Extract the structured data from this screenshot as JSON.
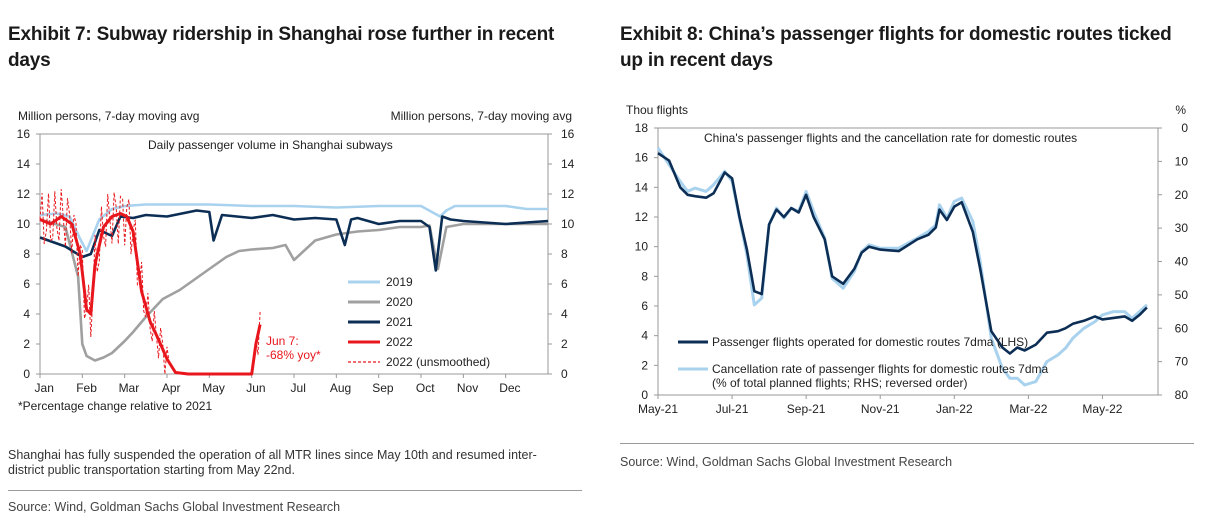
{
  "exhibit7": {
    "title": "Exhibit 7: Subway ridership in Shanghai rose further in recent days",
    "note": "Shanghai has fully suspended the operation of all MTR lines since May 10th and resumed inter-district public transportation starting from May 22nd.",
    "source": "Source: Wind, Goldman Sachs Global Investment Research",
    "footnote": "*Percentage change relative to 2021",
    "annotation": [
      "Jun 7:",
      "-68% yoy*"
    ],
    "colors": {
      "2019": "#a9d2ee",
      "2020": "#a0a0a0",
      "2021": "#0c2e55",
      "2022": "#e8171d"
    }
  },
  "exhibit8": {
    "title": "Exhibit 8: China’s passenger flights for domestic routes ticked up in recent days",
    "source": "Source: Wind, Goldman Sachs Global Investment Research",
    "colors": {
      "flights": "#0c2e55",
      "cancel": "#a9d2ee"
    }
  },
  "chart_data": [
    {
      "type": "line",
      "title": "Daily passenger volume in Shanghai subways",
      "ylabel_left": "Million persons, 7-day moving avg",
      "ylabel_right": "Million persons, 7-day moving avg",
      "ylim": [
        0,
        16
      ],
      "yticks": [
        "0",
        "2",
        "4",
        "6",
        "8",
        "10",
        "12",
        "14",
        "16"
      ],
      "categories": [
        "Jan",
        "Feb",
        "Mar",
        "Apr",
        "May",
        "Jun",
        "Jul",
        "Aug",
        "Sep",
        "Oct",
        "Nov",
        "Dec"
      ],
      "x_unit": "month (0 = start of Jan, 12 = end of Dec)",
      "legend": [
        "2019",
        "2020",
        "2021",
        "2022",
        "2022 (unsmoothed)"
      ],
      "series": [
        {
          "name": "2019",
          "x": [
            0,
            0.4,
            0.7,
            0.95,
            1.1,
            1.4,
            1.7,
            2.0,
            2.5,
            3.0,
            4.0,
            5.0,
            6.0,
            7.0,
            8.0,
            9.0,
            9.45,
            9.6,
            9.8,
            10.0,
            11.0,
            11.5,
            12.0
          ],
          "values": [
            10.6,
            10.7,
            10.5,
            9.0,
            8.2,
            10.3,
            11.0,
            11.2,
            11.3,
            11.3,
            11.3,
            11.2,
            11.2,
            11.1,
            11.2,
            11.2,
            10.5,
            10.9,
            11.2,
            11.2,
            11.2,
            11.0,
            11.0
          ]
        },
        {
          "name": "2020",
          "x": [
            0,
            0.6,
            0.9,
            1.0,
            1.1,
            1.3,
            1.5,
            1.7,
            2.0,
            2.2,
            2.5,
            2.9,
            3.3,
            3.6,
            4.0,
            4.4,
            4.7,
            5.0,
            5.5,
            5.8,
            6.0,
            6.5,
            7.0,
            7.5,
            8.0,
            8.5,
            9.0,
            9.2,
            9.4,
            9.6,
            10.0,
            11.0,
            12.0
          ],
          "values": [
            10.3,
            9.8,
            6.5,
            2.0,
            1.2,
            0.9,
            1.1,
            1.4,
            2.2,
            2.8,
            3.8,
            5.0,
            5.6,
            6.2,
            7.0,
            7.8,
            8.2,
            8.3,
            8.4,
            8.6,
            7.6,
            8.9,
            9.3,
            9.5,
            9.6,
            9.8,
            9.8,
            9.9,
            7.0,
            9.8,
            10.0,
            10.0,
            10.0
          ]
        },
        {
          "name": "2021",
          "x": [
            0,
            0.3,
            0.6,
            1.0,
            1.2,
            1.4,
            1.7,
            1.9,
            2.2,
            2.5,
            3.0,
            3.7,
            4.0,
            4.1,
            4.3,
            5.0,
            5.5,
            6.0,
            6.5,
            7.0,
            7.2,
            7.35,
            7.5,
            8.0,
            8.5,
            9.0,
            9.2,
            9.35,
            9.5,
            9.7,
            10.0,
            11.0,
            12.0
          ],
          "values": [
            9.1,
            8.8,
            8.5,
            7.8,
            8.0,
            9.6,
            9.2,
            10.5,
            10.4,
            10.6,
            10.5,
            10.9,
            10.8,
            8.9,
            10.6,
            10.4,
            10.6,
            10.3,
            10.4,
            10.3,
            8.6,
            10.3,
            10.4,
            10.0,
            10.2,
            10.2,
            9.8,
            6.9,
            10.5,
            10.3,
            10.2,
            10.0,
            10.2
          ]
        },
        {
          "name": "2022",
          "x": [
            0,
            0.25,
            0.5,
            0.75,
            0.95,
            1.1,
            1.2,
            1.3,
            1.5,
            1.7,
            1.9,
            2.05,
            2.2,
            2.4,
            2.6,
            2.8,
            3.0,
            3.2,
            3.5,
            4.0,
            5.0,
            5.1,
            5.2
          ],
          "values": [
            10.3,
            10.0,
            10.5,
            10.0,
            8.0,
            4.3,
            4.0,
            7.3,
            9.8,
            10.5,
            10.7,
            10.5,
            9.5,
            5.5,
            3.5,
            2.3,
            1.0,
            0.1,
            0.0,
            0.0,
            0.0,
            2.0,
            3.3
          ]
        }
      ],
      "annotation_text": [
        "Jun 7:",
        "-68% yoy*"
      ]
    },
    {
      "type": "line",
      "title": "China's passenger flights and the cancellation rate for domestic routes",
      "ylabel_left": "Thou flights",
      "ylabel_right": "%",
      "ylim_left": [
        0,
        18
      ],
      "ylim_right_reversed": [
        0,
        80
      ],
      "yticks_left": [
        "0",
        "2",
        "4",
        "6",
        "8",
        "10",
        "12",
        "14",
        "16",
        "18"
      ],
      "yticks_right": [
        "0",
        "10",
        "20",
        "30",
        "40",
        "50",
        "60",
        "70",
        "80"
      ],
      "categories": [
        "May-21",
        "Jul-21",
        "Sep-21",
        "Nov-21",
        "Jan-22",
        "Mar-22",
        "May-22"
      ],
      "x_unit": "months since start of May-21",
      "series": [
        {
          "name": "Passenger flights operated for domestic routes 7dma (LHS)",
          "x": [
            0,
            0.3,
            0.6,
            0.8,
            1.0,
            1.3,
            1.5,
            1.8,
            2.0,
            2.2,
            2.4,
            2.6,
            2.8,
            3.0,
            3.2,
            3.4,
            3.6,
            3.8,
            4.0,
            4.2,
            4.5,
            4.7,
            5.0,
            5.3,
            5.5,
            5.7,
            6.0,
            6.5,
            7.0,
            7.3,
            7.5,
            7.6,
            7.8,
            8.0,
            8.2,
            8.5,
            8.7,
            9.0,
            9.3,
            9.5,
            9.7,
            9.9,
            10.2,
            10.5,
            10.8,
            11.0,
            11.2,
            11.5,
            11.8,
            12.0,
            12.3,
            12.6,
            12.8,
            13.0,
            13.2
          ],
          "values": [
            16.3,
            15.8,
            14.0,
            13.5,
            13.4,
            13.3,
            13.6,
            15.0,
            14.6,
            12.0,
            9.8,
            7.0,
            6.8,
            11.5,
            12.5,
            12.0,
            12.6,
            12.3,
            13.5,
            12.0,
            10.5,
            8.0,
            7.5,
            8.5,
            9.6,
            10.0,
            9.8,
            9.7,
            10.5,
            10.8,
            11.3,
            12.5,
            11.8,
            12.7,
            13.0,
            11.0,
            8.5,
            4.3,
            3.2,
            2.8,
            3.2,
            3.0,
            3.4,
            4.2,
            4.3,
            4.5,
            4.8,
            5.0,
            5.3,
            5.1,
            5.2,
            5.3,
            5.0,
            5.4,
            5.9
          ]
        },
        {
          "name": "Cancellation rate of passenger flights for domestic routes 7dma (% of total planned flights; RHS; reversed order)",
          "x": [
            0,
            0.3,
            0.6,
            0.8,
            1.0,
            1.3,
            1.5,
            1.8,
            2.0,
            2.2,
            2.4,
            2.6,
            2.8,
            3.0,
            3.2,
            3.4,
            3.6,
            3.8,
            4.0,
            4.2,
            4.5,
            4.7,
            5.0,
            5.3,
            5.5,
            5.7,
            6.0,
            6.5,
            7.0,
            7.3,
            7.5,
            7.6,
            7.8,
            8.0,
            8.2,
            8.5,
            8.7,
            9.0,
            9.3,
            9.5,
            9.7,
            9.9,
            10.2,
            10.5,
            10.8,
            11.0,
            11.2,
            11.5,
            11.8,
            12.0,
            12.3,
            12.6,
            12.8,
            13.0,
            13.2
          ],
          "values": [
            6,
            11,
            16,
            19,
            18,
            19,
            17,
            13,
            16,
            27,
            38,
            53,
            51,
            29,
            24,
            27,
            24,
            25,
            19,
            25,
            33,
            45,
            48,
            43,
            37,
            35,
            36,
            36,
            33,
            31,
            29,
            23,
            27,
            22,
            21,
            28,
            40,
            63,
            72,
            75,
            75,
            77,
            76,
            70,
            68,
            66,
            63,
            60,
            58,
            56,
            55,
            55,
            57,
            55,
            53
          ]
        }
      ]
    }
  ]
}
